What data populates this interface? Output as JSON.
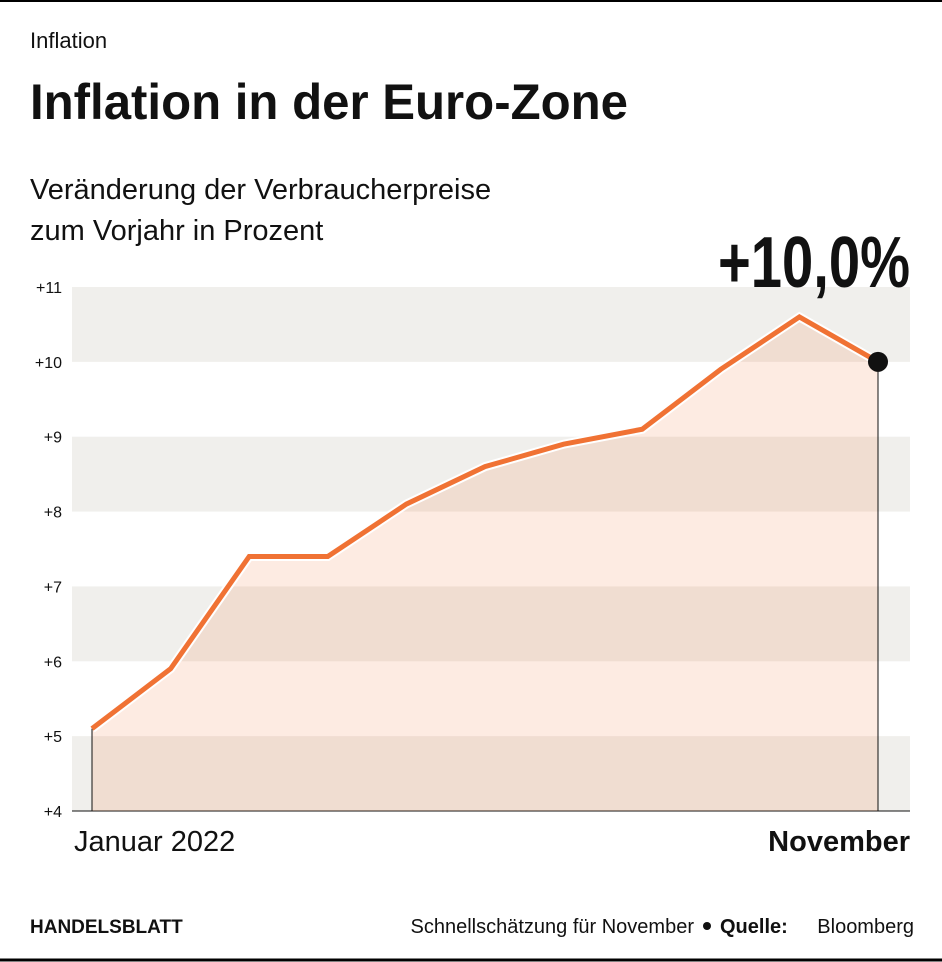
{
  "chart_data": {
    "type": "line",
    "kicker": "Inflation",
    "title": "Inflation in der Euro-Zone",
    "subtitle": [
      "Veränderung der Verbraucherpreise",
      "zum Vorjahr in Prozent"
    ],
    "categories": [
      "Januar 2022",
      null,
      null,
      null,
      null,
      null,
      null,
      null,
      null,
      null,
      "November"
    ],
    "series": [
      {
        "color": "#f07234",
        "values": [
          5.1,
          5.9,
          7.4,
          7.4,
          8.1,
          8.6,
          8.9,
          9.1,
          9.9,
          10.6,
          10.0
        ],
        "value_labels": [
          null,
          null,
          null,
          null,
          null,
          null,
          null,
          null,
          null,
          null,
          "+10,0%"
        ]
      }
    ],
    "ylim": [
      4,
      11
    ],
    "yticks": [
      {
        "value": 4,
        "label": "+4"
      },
      {
        "value": 5,
        "label": "+5"
      },
      {
        "value": 6,
        "label": "+6"
      },
      {
        "value": 7,
        "label": "+7"
      },
      {
        "value": 8,
        "label": "+8"
      },
      {
        "value": 9,
        "label": "+9"
      },
      {
        "value": 10,
        "label": "+10"
      },
      {
        "value": 11,
        "label": "+11"
      }
    ],
    "grid": "bands",
    "footer": {
      "brand": "HANDELSBLATT",
      "note": "Schnellschätzung für November",
      "source_label": "Quelle:",
      "source": "Bloomberg"
    }
  }
}
